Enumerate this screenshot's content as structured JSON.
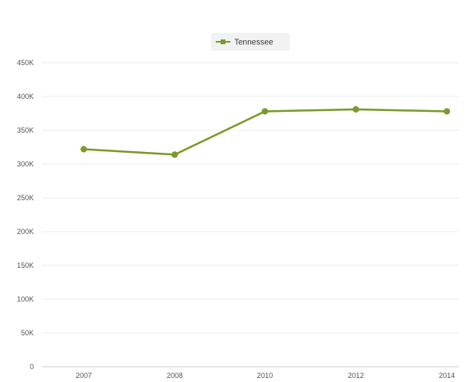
{
  "chart_data": {
    "type": "line",
    "title": "",
    "xlabel": "",
    "ylabel": "",
    "legend": {
      "position": "top-center"
    },
    "grid": true,
    "x": [
      "2007",
      "2008",
      "2010",
      "2012",
      "2014"
    ],
    "series": [
      {
        "name": "Tennessee",
        "color": "#7a9a2a",
        "values": [
          322000,
          314000,
          378000,
          381000,
          378000
        ]
      }
    ],
    "ylim": [
      0,
      450000
    ],
    "yticks": [
      0,
      50000,
      100000,
      150000,
      200000,
      250000,
      300000,
      350000,
      400000,
      450000
    ],
    "ytick_labels": [
      "0",
      "50K",
      "100K",
      "150K",
      "200K",
      "250K",
      "300K",
      "350K",
      "400K",
      "450K"
    ]
  }
}
